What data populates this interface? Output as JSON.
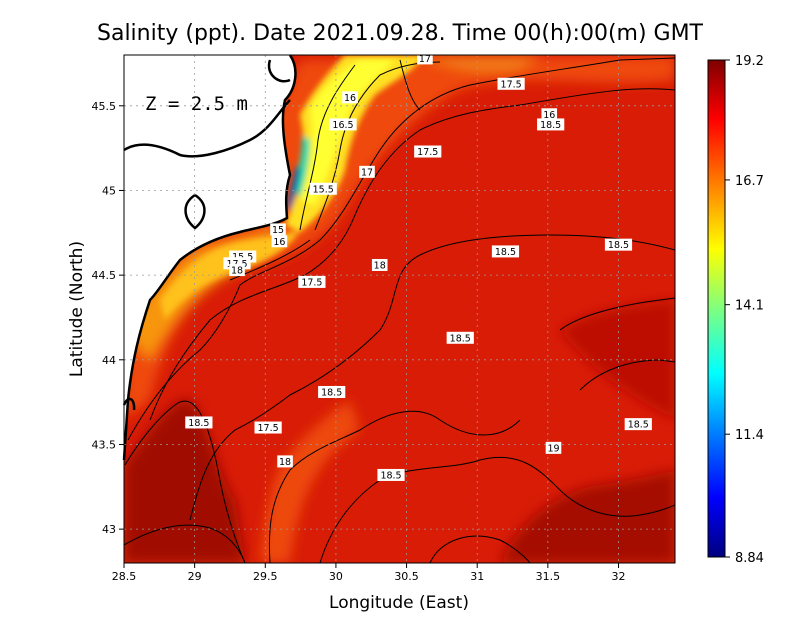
{
  "chart_data": {
    "type": "heatmap",
    "title": "Salinity (ppt). Date 2021.09.28. Time 00(h):00(m) GMT",
    "xlabel": "Longitude (East)",
    "ylabel": "Latitude (North)",
    "annotation": "Z = 2.5 m",
    "xlim": [
      28.5,
      32.4
    ],
    "ylim": [
      42.8,
      45.8
    ],
    "x_ticks": [
      28.5,
      29,
      29.5,
      30,
      30.5,
      31,
      31.5,
      32
    ],
    "x_tick_labels": [
      "28.5",
      "29",
      "29.5",
      "30",
      "30.5",
      "31",
      "31.5",
      "32"
    ],
    "y_ticks": [
      43,
      43.5,
      44,
      44.5,
      45,
      45.5
    ],
    "y_tick_labels": [
      "43",
      "43.5",
      "44",
      "44.5",
      "45",
      "45.5"
    ],
    "grid": true,
    "colorbar": {
      "min": 8.84,
      "max": 19.2,
      "tick_values": [
        19.2,
        16.7,
        14.1,
        11.4,
        8.84
      ],
      "tick_labels": [
        "19.2",
        "16.7",
        "14.1",
        "11.4",
        "8.84"
      ],
      "colors": [
        "#00007f",
        "#0000ff",
        "#007fff",
        "#00ffff",
        "#7fff7f",
        "#ffff00",
        "#ff7f00",
        "#ff0000",
        "#7f0000"
      ]
    },
    "contour_labels": [
      {
        "text": "17",
        "lon": 30.63,
        "lat": 45.78
      },
      {
        "text": "17.5",
        "lon": 31.24,
        "lat": 45.63
      },
      {
        "text": "16",
        "lon": 30.1,
        "lat": 45.55
      },
      {
        "text": "16",
        "lon": 31.51,
        "lat": 45.45
      },
      {
        "text": "18.5",
        "lon": 31.52,
        "lat": 45.39
      },
      {
        "text": "16.5",
        "lon": 30.05,
        "lat": 45.39
      },
      {
        "text": "17.5",
        "lon": 30.65,
        "lat": 45.23
      },
      {
        "text": "17",
        "lon": 30.22,
        "lat": 45.11
      },
      {
        "text": "15.5",
        "lon": 29.91,
        "lat": 45.01
      },
      {
        "text": "15",
        "lon": 29.59,
        "lat": 44.77
      },
      {
        "text": "16",
        "lon": 29.6,
        "lat": 44.7
      },
      {
        "text": "15.5",
        "lon": 29.34,
        "lat": 44.61
      },
      {
        "text": "17.5",
        "lon": 29.3,
        "lat": 44.57
      },
      {
        "text": "18",
        "lon": 29.3,
        "lat": 44.53
      },
      {
        "text": "18",
        "lon": 30.31,
        "lat": 44.56
      },
      {
        "text": "18.5",
        "lon": 31.2,
        "lat": 44.64
      },
      {
        "text": "18.5",
        "lon": 32.0,
        "lat": 44.68
      },
      {
        "text": "17.5",
        "lon": 29.83,
        "lat": 44.46
      },
      {
        "text": "18.5",
        "lon": 30.88,
        "lat": 44.13
      },
      {
        "text": "18.5",
        "lon": 29.97,
        "lat": 43.81
      },
      {
        "text": "18.5",
        "lon": 29.03,
        "lat": 43.63
      },
      {
        "text": "17.5",
        "lon": 29.52,
        "lat": 43.6
      },
      {
        "text": "18.5",
        "lon": 32.14,
        "lat": 43.62
      },
      {
        "text": "19",
        "lon": 31.54,
        "lat": 43.48
      },
      {
        "text": "18",
        "lon": 29.64,
        "lat": 43.4
      },
      {
        "text": "18.5",
        "lon": 30.39,
        "lat": 43.32
      }
    ]
  }
}
